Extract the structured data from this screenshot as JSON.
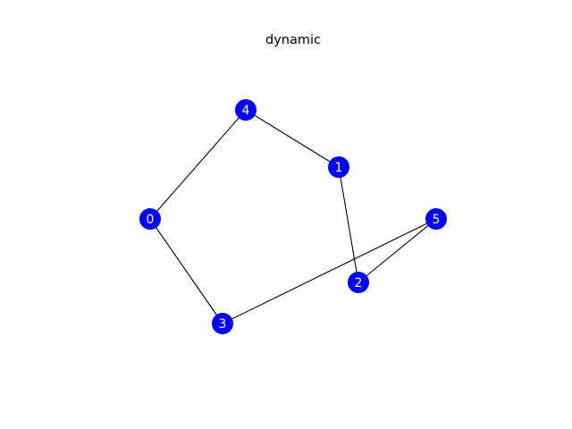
{
  "title": "dynamic",
  "colors": {
    "node_fill": "#0000ff",
    "node_label": "#ffffff",
    "edge": "#000000",
    "background": "#ffffff"
  },
  "graph": {
    "nodes": [
      {
        "id": "0",
        "label": "0"
      },
      {
        "id": "1",
        "label": "1"
      },
      {
        "id": "2",
        "label": "2"
      },
      {
        "id": "3",
        "label": "3"
      },
      {
        "id": "4",
        "label": "4"
      },
      {
        "id": "5",
        "label": "5"
      }
    ],
    "edges": [
      {
        "source": "0",
        "target": "4"
      },
      {
        "source": "0",
        "target": "3"
      },
      {
        "source": "4",
        "target": "1"
      },
      {
        "source": "1",
        "target": "2"
      },
      {
        "source": "2",
        "target": "5"
      },
      {
        "source": "3",
        "target": "5"
      }
    ]
  }
}
